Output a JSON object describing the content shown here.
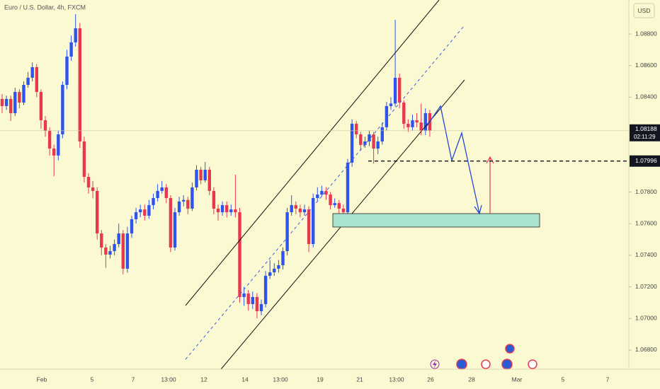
{
  "chart_data": {
    "type": "candlestick",
    "title": "Euro / U.S. Dollar, 4h, FXCM",
    "currency": "USD",
    "countdown": "02:11:29",
    "level": 1.07996,
    "up_color": "#2f54eb",
    "down_color": "#e8384f",
    "ylim": [
      1.06688,
      1.09015
    ],
    "yticks": [
      {
        "value": 1.068,
        "label": "1.06800"
      },
      {
        "value": 1.07,
        "label": "1.07000"
      },
      {
        "value": 1.072,
        "label": "1.07200"
      },
      {
        "value": 1.074,
        "label": "1.07400"
      },
      {
        "value": 1.076,
        "label": "1.07600"
      },
      {
        "value": 1.078,
        "label": "1.07800"
      },
      {
        "value": 1.084,
        "label": "1.08400"
      },
      {
        "value": 1.086,
        "label": "1.08600"
      },
      {
        "value": 1.088,
        "label": "1.08800"
      }
    ],
    "xtick_labels": [
      "Feb",
      "5",
      "7",
      "13:00",
      "12",
      "14",
      "13:00",
      "19",
      "21",
      "13:00",
      "26",
      "28",
      "Mar",
      "5",
      "7"
    ],
    "ohlc": [
      [
        1.08389,
        1.0842,
        1.083,
        1.08344
      ],
      [
        1.08344,
        1.0841,
        1.0832,
        1.08389
      ],
      [
        1.08389,
        1.0841,
        1.0825,
        1.08299
      ],
      [
        1.08299,
        1.0846,
        1.0828,
        1.08433
      ],
      [
        1.08433,
        1.0845,
        1.0833,
        1.08366
      ],
      [
        1.08366,
        1.085,
        1.0835,
        1.08478
      ],
      [
        1.08478,
        1.0856,
        1.0846,
        1.08523
      ],
      [
        1.08523,
        1.0862,
        1.085,
        1.0859
      ],
      [
        1.0859,
        1.0861,
        1.084,
        1.08433
      ],
      [
        1.08433,
        1.0845,
        1.082,
        1.08254
      ],
      [
        1.08254,
        1.0828,
        1.0815,
        1.08187
      ],
      [
        1.08187,
        1.0821,
        1.0803,
        1.08075
      ],
      [
        1.08075,
        1.081,
        1.079,
        1.08031
      ],
      [
        1.08031,
        1.0819,
        1.08,
        1.08165
      ],
      [
        1.08165,
        1.085,
        1.0814,
        1.08478
      ],
      [
        1.08478,
        1.087,
        1.0845,
        1.08657
      ],
      [
        1.08657,
        1.0879,
        1.0863,
        1.08747
      ],
      [
        1.08747,
        1.08926,
        1.0872,
        1.08836
      ],
      [
        1.08836,
        1.0887,
        1.0808,
        1.0812
      ],
      [
        1.0812,
        1.0815,
        1.0786,
        1.07896
      ],
      [
        1.07896,
        1.0792,
        1.0779,
        1.07829
      ],
      [
        1.07829,
        1.0787,
        1.0776,
        1.07807
      ],
      [
        1.07807,
        1.0783,
        1.075,
        1.07538
      ],
      [
        1.07538,
        1.0756,
        1.074,
        1.07449
      ],
      [
        1.07449,
        1.0747,
        1.0732,
        1.07404
      ],
      [
        1.07404,
        1.0746,
        1.0738,
        1.07426
      ],
      [
        1.07426,
        1.075,
        1.074,
        1.07471
      ],
      [
        1.07471,
        1.076,
        1.0745,
        1.07538
      ],
      [
        1.07538,
        1.0756,
        1.0728,
        1.07315
      ],
      [
        1.07315,
        1.0758,
        1.0729,
        1.07538
      ],
      [
        1.07538,
        1.0765,
        1.0751,
        1.07628
      ],
      [
        1.07628,
        1.077,
        1.076,
        1.07672
      ],
      [
        1.07672,
        1.0772,
        1.0764,
        1.0769
      ],
      [
        1.0769,
        1.0772,
        1.0762,
        1.0765
      ],
      [
        1.0765,
        1.0775,
        1.0763,
        1.07717
      ],
      [
        1.07717,
        1.0779,
        1.0769,
        1.07762
      ],
      [
        1.07762,
        1.0785,
        1.0774,
        1.07807
      ],
      [
        1.07807,
        1.0787,
        1.0779,
        1.07829
      ],
      [
        1.07829,
        1.0785,
        1.0773,
        1.07762
      ],
      [
        1.07762,
        1.0778,
        1.0742,
        1.07449
      ],
      [
        1.07449,
        1.077,
        1.0743,
        1.07672
      ],
      [
        1.07672,
        1.0777,
        1.0765,
        1.0774
      ],
      [
        1.0774,
        1.0778,
        1.0771,
        1.0775
      ],
      [
        1.0775,
        1.0777,
        1.0766,
        1.07695
      ],
      [
        1.07695,
        1.0786,
        1.0768,
        1.07829
      ],
      [
        1.07829,
        1.0797,
        1.0781,
        1.07941
      ],
      [
        1.07941,
        1.0796,
        1.0785,
        1.07874
      ],
      [
        1.07874,
        1.0799,
        1.0786,
        1.07941
      ],
      [
        1.07941,
        1.0796,
        1.0778,
        1.07807
      ],
      [
        1.07807,
        1.0783,
        1.0766,
        1.07695
      ],
      [
        1.07695,
        1.0772,
        1.0762,
        1.07672
      ],
      [
        1.07672,
        1.0774,
        1.0765,
        1.07717
      ],
      [
        1.07717,
        1.0774,
        1.0764,
        1.07672
      ],
      [
        1.07672,
        1.0772,
        1.0765,
        1.0769
      ],
      [
        1.0769,
        1.0791,
        1.0764,
        1.07672
      ],
      [
        1.07672,
        1.077,
        1.071,
        1.07136
      ],
      [
        1.07136,
        1.072,
        1.0708,
        1.07158
      ],
      [
        1.07158,
        1.0718,
        1.0705,
        1.07091
      ],
      [
        1.07091,
        1.0717,
        1.0706,
        1.07136
      ],
      [
        1.07136,
        1.0716,
        1.07001,
        1.07046
      ],
      [
        1.07046,
        1.0712,
        1.0702,
        1.07091
      ],
      [
        1.07091,
        1.073,
        1.0707,
        1.0727
      ],
      [
        1.0727,
        1.0737,
        1.0725,
        1.07292
      ],
      [
        1.07292,
        1.0735,
        1.0727,
        1.07315
      ],
      [
        1.07315,
        1.0737,
        1.0729,
        1.07337
      ],
      [
        1.07337,
        1.0745,
        1.0731,
        1.07426
      ],
      [
        1.07426,
        1.077,
        1.074,
        1.07672
      ],
      [
        1.07672,
        1.0778,
        1.0765,
        1.07717
      ],
      [
        1.07717,
        1.0774,
        1.0766,
        1.07695
      ],
      [
        1.07695,
        1.0772,
        1.0764,
        1.07672
      ],
      [
        1.07672,
        1.0772,
        1.0765,
        1.0769
      ],
      [
        1.0769,
        1.0771,
        1.0742,
        1.07471
      ],
      [
        1.07471,
        1.0779,
        1.0745,
        1.07762
      ],
      [
        1.07762,
        1.0783,
        1.0774,
        1.07784
      ],
      [
        1.07784,
        1.0784,
        1.0777,
        1.07807
      ],
      [
        1.07807,
        1.0783,
        1.0775,
        1.07784
      ],
      [
        1.07784,
        1.078,
        1.0769,
        1.07717
      ],
      [
        1.07717,
        1.0776,
        1.077,
        1.0773
      ],
      [
        1.0773,
        1.0775,
        1.0766,
        1.07695
      ],
      [
        1.07695,
        1.0772,
        1.0764,
        1.07672
      ],
      [
        1.07672,
        1.0801,
        1.0765,
        1.07986
      ],
      [
        1.07986,
        1.0826,
        1.0796,
        1.08232
      ],
      [
        1.08232,
        1.0825,
        1.0814,
        1.08165
      ],
      [
        1.08165,
        1.0818,
        1.0806,
        1.08098
      ],
      [
        1.08098,
        1.0815,
        1.0808,
        1.0812
      ],
      [
        1.0812,
        1.0819,
        1.0809,
        1.08165
      ],
      [
        1.08165,
        1.0818,
        1.0798,
        1.08075
      ],
      [
        1.08075,
        1.0815,
        1.0804,
        1.0812
      ],
      [
        1.0812,
        1.0824,
        1.081,
        1.0821
      ],
      [
        1.0821,
        1.0837,
        1.0819,
        1.08344
      ],
      [
        1.08344,
        1.084,
        1.0832,
        1.0836
      ],
      [
        1.0836,
        1.0889,
        1.0834,
        1.08523
      ],
      [
        1.08523,
        1.0855,
        1.0833,
        1.08366
      ],
      [
        1.08366,
        1.0838,
        1.082,
        1.08232
      ],
      [
        1.08232,
        1.0826,
        1.0818,
        1.0821
      ],
      [
        1.0821,
        1.0829,
        1.0819,
        1.08254
      ],
      [
        1.08254,
        1.083,
        1.0821,
        1.0824
      ],
      [
        1.0824,
        1.0836,
        1.0816,
        1.08187
      ],
      [
        1.08187,
        1.0833,
        1.0816,
        1.08299
      ],
      [
        1.08299,
        1.0832,
        1.0815,
        1.08188
      ]
    ]
  }
}
